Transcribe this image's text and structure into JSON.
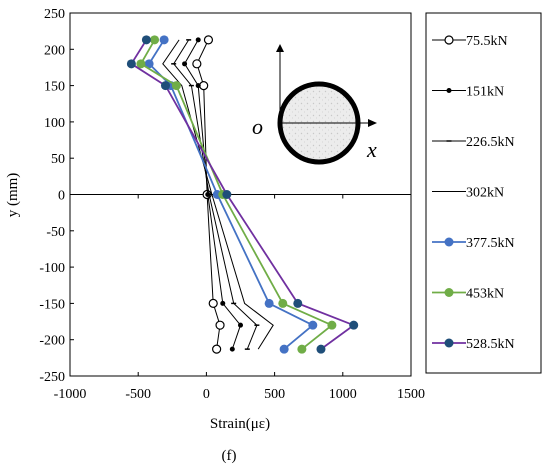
{
  "chart_data": {
    "type": "line",
    "xlabel": "Strain(με)",
    "ylabel": "y (mm)",
    "xlim": [
      -1000,
      1500
    ],
    "ylim": [
      -250,
      250
    ],
    "xticks": [
      -1000,
      -500,
      0,
      500,
      1000,
      1500
    ],
    "yticks": [
      -250,
      -200,
      -150,
      -100,
      -50,
      0,
      50,
      100,
      150,
      200,
      250
    ],
    "grid": false,
    "legend_placement": "right",
    "caption": "(f)",
    "inset": {
      "origin_label": "o",
      "axis_label": "x"
    },
    "series": [
      {
        "name": "75.5kN",
        "color": "#000000",
        "marker": "open-circle",
        "points": [
          [
            15,
            213
          ],
          [
            -70,
            180
          ],
          [
            -20,
            150
          ],
          [
            5,
            0
          ],
          [
            50,
            -150
          ],
          [
            100,
            -180
          ],
          [
            75,
            -213
          ]
        ]
      },
      {
        "name": "151kN",
        "color": "#000000",
        "marker": "dot",
        "points": [
          [
            -60,
            213
          ],
          [
            -160,
            180
          ],
          [
            -60,
            150
          ],
          [
            10,
            0
          ],
          [
            120,
            -150
          ],
          [
            250,
            -180
          ],
          [
            190,
            -213
          ]
        ]
      },
      {
        "name": "226.5kN",
        "color": "#000000",
        "marker": "dash",
        "points": [
          [
            -130,
            213
          ],
          [
            -240,
            180
          ],
          [
            -110,
            150
          ],
          [
            20,
            0
          ],
          [
            200,
            -150
          ],
          [
            370,
            -180
          ],
          [
            300,
            -213
          ]
        ]
      },
      {
        "name": "302kN",
        "color": "#000000",
        "marker": "none",
        "points": [
          [
            -200,
            213
          ],
          [
            -320,
            180
          ],
          [
            -180,
            150
          ],
          [
            40,
            0
          ],
          [
            280,
            -150
          ],
          [
            490,
            -180
          ],
          [
            380,
            -213
          ]
        ]
      },
      {
        "name": "377.5kN",
        "color": "#4472C4",
        "marker": "dot",
        "points": [
          [
            -310,
            213
          ],
          [
            -420,
            180
          ],
          [
            -260,
            150
          ],
          [
            80,
            0
          ],
          [
            460,
            -150
          ],
          [
            780,
            -180
          ],
          [
            570,
            -213
          ]
        ]
      },
      {
        "name": "453kN",
        "color": "#70AD47",
        "marker": "dot",
        "points": [
          [
            -380,
            213
          ],
          [
            -480,
            180
          ],
          [
            -220,
            150
          ],
          [
            120,
            0
          ],
          [
            560,
            -150
          ],
          [
            920,
            -180
          ],
          [
            700,
            -213
          ]
        ]
      },
      {
        "name": "528.5kN",
        "color": "#7030A0",
        "marker": "navy-dot",
        "points": [
          [
            -440,
            213
          ],
          [
            -550,
            180
          ],
          [
            -300,
            150
          ],
          [
            150,
            0
          ],
          [
            670,
            -150
          ],
          [
            1080,
            -180
          ],
          [
            840,
            -213
          ]
        ]
      }
    ]
  }
}
